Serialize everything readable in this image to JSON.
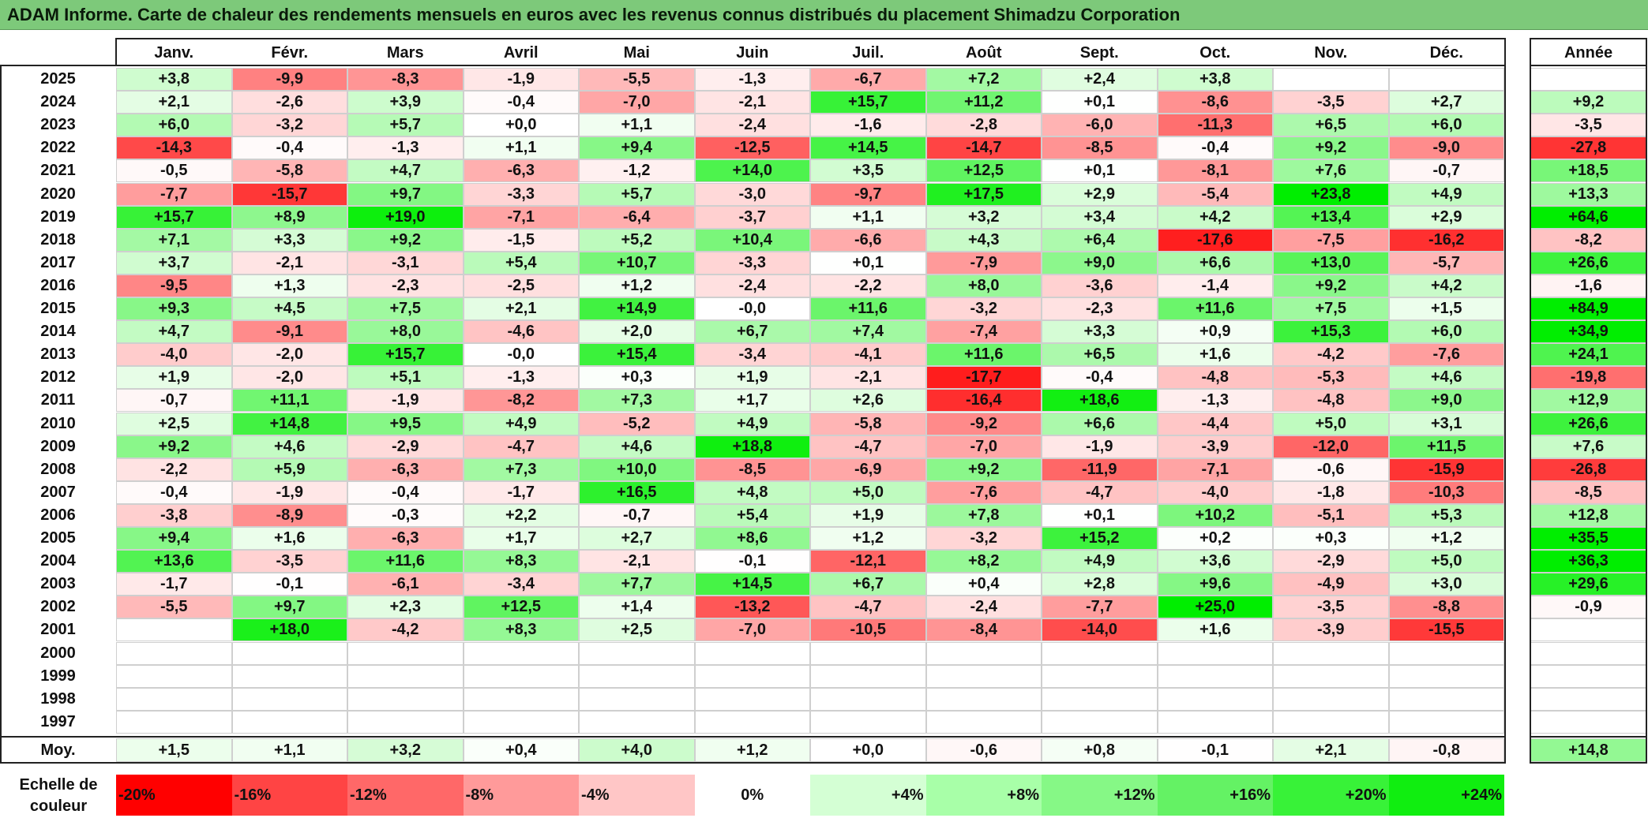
{
  "title": "ADAM Informe. Carte de chaleur des rendements mensuels en euros avec les revenus connus distribués du placement Shimadzu Corporation",
  "chart_data": {
    "type": "heatmap",
    "columns": [
      "Janv.",
      "Févr.",
      "Mars",
      "Avril",
      "Mai",
      "Juin",
      "Juil.",
      "Août",
      "Sept.",
      "Oct.",
      "Nov.",
      "Déc."
    ],
    "year_column": "Année",
    "rows": [
      {
        "year": "2025",
        "values": [
          "+3,8",
          "-9,9",
          "-8,3",
          "-1,9",
          "-5,5",
          "-1,3",
          "-6,7",
          "+7,2",
          "+2,4",
          "+3,8",
          "",
          ""
        ],
        "annual": ""
      },
      {
        "year": "2024",
        "values": [
          "+2,1",
          "-2,6",
          "+3,9",
          "-0,4",
          "-7,0",
          "-2,1",
          "+15,7",
          "+11,2",
          "+0,1",
          "-8,6",
          "-3,5",
          "+2,7"
        ],
        "annual": "+9,2"
      },
      {
        "year": "2023",
        "values": [
          "+6,0",
          "-3,2",
          "+5,7",
          "+0,0",
          "+1,1",
          "-2,4",
          "-1,6",
          "-2,8",
          "-6,0",
          "-11,3",
          "+6,5",
          "+6,0"
        ],
        "annual": "-3,5"
      },
      {
        "year": "2022",
        "values": [
          "-14,3",
          "-0,4",
          "-1,3",
          "+1,1",
          "+9,4",
          "-12,5",
          "+14,5",
          "-14,7",
          "-8,5",
          "-0,4",
          "+9,2",
          "-9,0"
        ],
        "annual": "-27,8"
      },
      {
        "year": "2021",
        "values": [
          "-0,5",
          "-5,8",
          "+4,7",
          "-6,3",
          "-1,2",
          "+14,0",
          "+3,5",
          "+12,5",
          "+0,1",
          "-8,1",
          "+7,6",
          "-0,7"
        ],
        "annual": "+18,5"
      },
      {
        "year": "2020",
        "values": [
          "-7,7",
          "-15,7",
          "+9,7",
          "-3,3",
          "+5,7",
          "-3,0",
          "-9,7",
          "+17,5",
          "+2,9",
          "-5,4",
          "+23,8",
          "+4,9"
        ],
        "annual": "+13,3"
      },
      {
        "year": "2019",
        "values": [
          "+15,7",
          "+8,9",
          "+19,0",
          "-7,1",
          "-6,4",
          "-3,7",
          "+1,1",
          "+3,2",
          "+3,4",
          "+4,2",
          "+13,4",
          "+2,9"
        ],
        "annual": "+64,6"
      },
      {
        "year": "2018",
        "values": [
          "+7,1",
          "+3,3",
          "+9,2",
          "-1,5",
          "+5,2",
          "+10,4",
          "-6,6",
          "+4,3",
          "+6,4",
          "-17,6",
          "-7,5",
          "-16,2"
        ],
        "annual": "-8,2"
      },
      {
        "year": "2017",
        "values": [
          "+3,7",
          "-2,1",
          "-3,1",
          "+5,4",
          "+10,7",
          "-3,3",
          "+0,1",
          "-7,9",
          "+9,0",
          "+6,6",
          "+13,0",
          "-5,7"
        ],
        "annual": "+26,6"
      },
      {
        "year": "2016",
        "values": [
          "-9,5",
          "+1,3",
          "-2,3",
          "-2,5",
          "+1,2",
          "-2,4",
          "-2,2",
          "+8,0",
          "-3,6",
          "-1,4",
          "+9,2",
          "+4,2"
        ],
        "annual": "-1,6"
      },
      {
        "year": "2015",
        "values": [
          "+9,3",
          "+4,5",
          "+7,5",
          "+2,1",
          "+14,9",
          "-0,0",
          "+11,6",
          "-3,2",
          "-2,3",
          "+11,6",
          "+7,5",
          "+1,5"
        ],
        "annual": "+84,9"
      },
      {
        "year": "2014",
        "values": [
          "+4,7",
          "-9,1",
          "+8,0",
          "-4,6",
          "+2,0",
          "+6,7",
          "+7,4",
          "-7,4",
          "+3,3",
          "+0,9",
          "+15,3",
          "+6,0"
        ],
        "annual": "+34,9"
      },
      {
        "year": "2013",
        "values": [
          "-4,0",
          "-2,0",
          "+15,7",
          "-0,0",
          "+15,4",
          "-3,4",
          "-4,1",
          "+11,6",
          "+6,5",
          "+1,6",
          "-4,2",
          "-7,6"
        ],
        "annual": "+24,1"
      },
      {
        "year": "2012",
        "values": [
          "+1,9",
          "-2,0",
          "+5,1",
          "-1,3",
          "+0,3",
          "+1,9",
          "-2,1",
          "-17,7",
          "-0,4",
          "-4,8",
          "-5,3",
          "+4,6"
        ],
        "annual": "-19,8"
      },
      {
        "year": "2011",
        "values": [
          "-0,7",
          "+11,1",
          "-1,9",
          "-8,2",
          "+7,3",
          "+1,7",
          "+2,6",
          "-16,4",
          "+18,6",
          "-1,3",
          "-4,8",
          "+9,0"
        ],
        "annual": "+12,9"
      },
      {
        "year": "2010",
        "values": [
          "+2,5",
          "+14,8",
          "+9,5",
          "+4,9",
          "-5,2",
          "+4,9",
          "-5,8",
          "-9,2",
          "+6,6",
          "-4,4",
          "+5,0",
          "+3,1"
        ],
        "annual": "+26,6"
      },
      {
        "year": "2009",
        "values": [
          "+9,2",
          "+4,6",
          "-2,9",
          "-4,7",
          "+4,6",
          "+18,8",
          "-4,7",
          "-7,0",
          "-1,9",
          "-3,9",
          "-12,0",
          "+11,5"
        ],
        "annual": "+7,6"
      },
      {
        "year": "2008",
        "values": [
          "-2,2",
          "+5,9",
          "-6,3",
          "+7,3",
          "+10,0",
          "-8,5",
          "-6,9",
          "+9,2",
          "-11,9",
          "-7,1",
          "-0,6",
          "-15,9"
        ],
        "annual": "-26,8"
      },
      {
        "year": "2007",
        "values": [
          "-0,4",
          "-1,9",
          "-0,4",
          "-1,7",
          "+16,5",
          "+4,8",
          "+5,0",
          "-7,6",
          "-4,7",
          "-4,0",
          "-1,8",
          "-10,3"
        ],
        "annual": "-8,5"
      },
      {
        "year": "2006",
        "values": [
          "-3,8",
          "-8,9",
          "-0,3",
          "+2,2",
          "-0,7",
          "+5,4",
          "+1,9",
          "+7,8",
          "+0,1",
          "+10,2",
          "-5,1",
          "+5,3"
        ],
        "annual": "+12,8"
      },
      {
        "year": "2005",
        "values": [
          "+9,4",
          "+1,6",
          "-6,3",
          "+1,7",
          "+2,7",
          "+8,6",
          "+1,2",
          "-3,2",
          "+15,2",
          "+0,2",
          "+0,3",
          "+1,2"
        ],
        "annual": "+35,5"
      },
      {
        "year": "2004",
        "values": [
          "+13,6",
          "-3,5",
          "+11,6",
          "+8,3",
          "-2,1",
          "-0,1",
          "-12,1",
          "+8,2",
          "+4,9",
          "+3,6",
          "-2,9",
          "+5,0"
        ],
        "annual": "+36,3"
      },
      {
        "year": "2003",
        "values": [
          "-1,7",
          "-0,1",
          "-6,1",
          "-3,4",
          "+7,7",
          "+14,5",
          "+6,7",
          "+0,4",
          "+2,8",
          "+9,6",
          "-4,9",
          "+3,0"
        ],
        "annual": "+29,6"
      },
      {
        "year": "2002",
        "values": [
          "-5,5",
          "+9,7",
          "+2,3",
          "+12,5",
          "+1,4",
          "-13,2",
          "-4,7",
          "-2,4",
          "-7,7",
          "+25,0",
          "-3,5",
          "-8,8"
        ],
        "annual": "-0,9"
      },
      {
        "year": "2001",
        "values": [
          "",
          "+18,0",
          "-4,2",
          "+8,3",
          "+2,5",
          "-7,0",
          "-10,5",
          "-8,4",
          "-14,0",
          "+1,6",
          "-3,9",
          "-15,5"
        ],
        "annual": ""
      },
      {
        "year": "2000",
        "values": [
          "",
          "",
          "",
          "",
          "",
          "",
          "",
          "",
          "",
          "",
          "",
          ""
        ],
        "annual": ""
      },
      {
        "year": "1999",
        "values": [
          "",
          "",
          "",
          "",
          "",
          "",
          "",
          "",
          "",
          "",
          "",
          ""
        ],
        "annual": ""
      },
      {
        "year": "1998",
        "values": [
          "",
          "",
          "",
          "",
          "",
          "",
          "",
          "",
          "",
          "",
          "",
          ""
        ],
        "annual": ""
      },
      {
        "year": "1997",
        "values": [
          "",
          "",
          "",
          "",
          "",
          "",
          "",
          "",
          "",
          "",
          "",
          ""
        ],
        "annual": ""
      }
    ],
    "average": {
      "label": "Moy.",
      "values": [
        "+1,5",
        "+1,1",
        "+3,2",
        "+0,4",
        "+4,0",
        "+1,2",
        "+0,0",
        "-0,6",
        "+0,8",
        "-0,1",
        "+2,1",
        "-0,8"
      ],
      "annual": "+14,8"
    },
    "legend": {
      "label": "Echelle de couleur",
      "stops": [
        "-20%",
        "-16%",
        "-12%",
        "-8%",
        "-4%",
        "0%",
        "+4%",
        "+8%",
        "+12%",
        "+16%",
        "+20%",
        "+24%"
      ],
      "colors": [
        "#ff0000",
        "#ff4444",
        "#ff6868",
        "#ff9a9a",
        "#ffc6c6",
        "#ffffff",
        "#d4ffd4",
        "#a8ffa8",
        "#86f886",
        "#64f264",
        "#38f238",
        "#10ee10"
      ]
    },
    "colors": {
      "negative_max": "#ff0000",
      "neutral": "#ffffff",
      "positive_max": "#00ee00",
      "title_bg": "#7dc97a"
    }
  }
}
